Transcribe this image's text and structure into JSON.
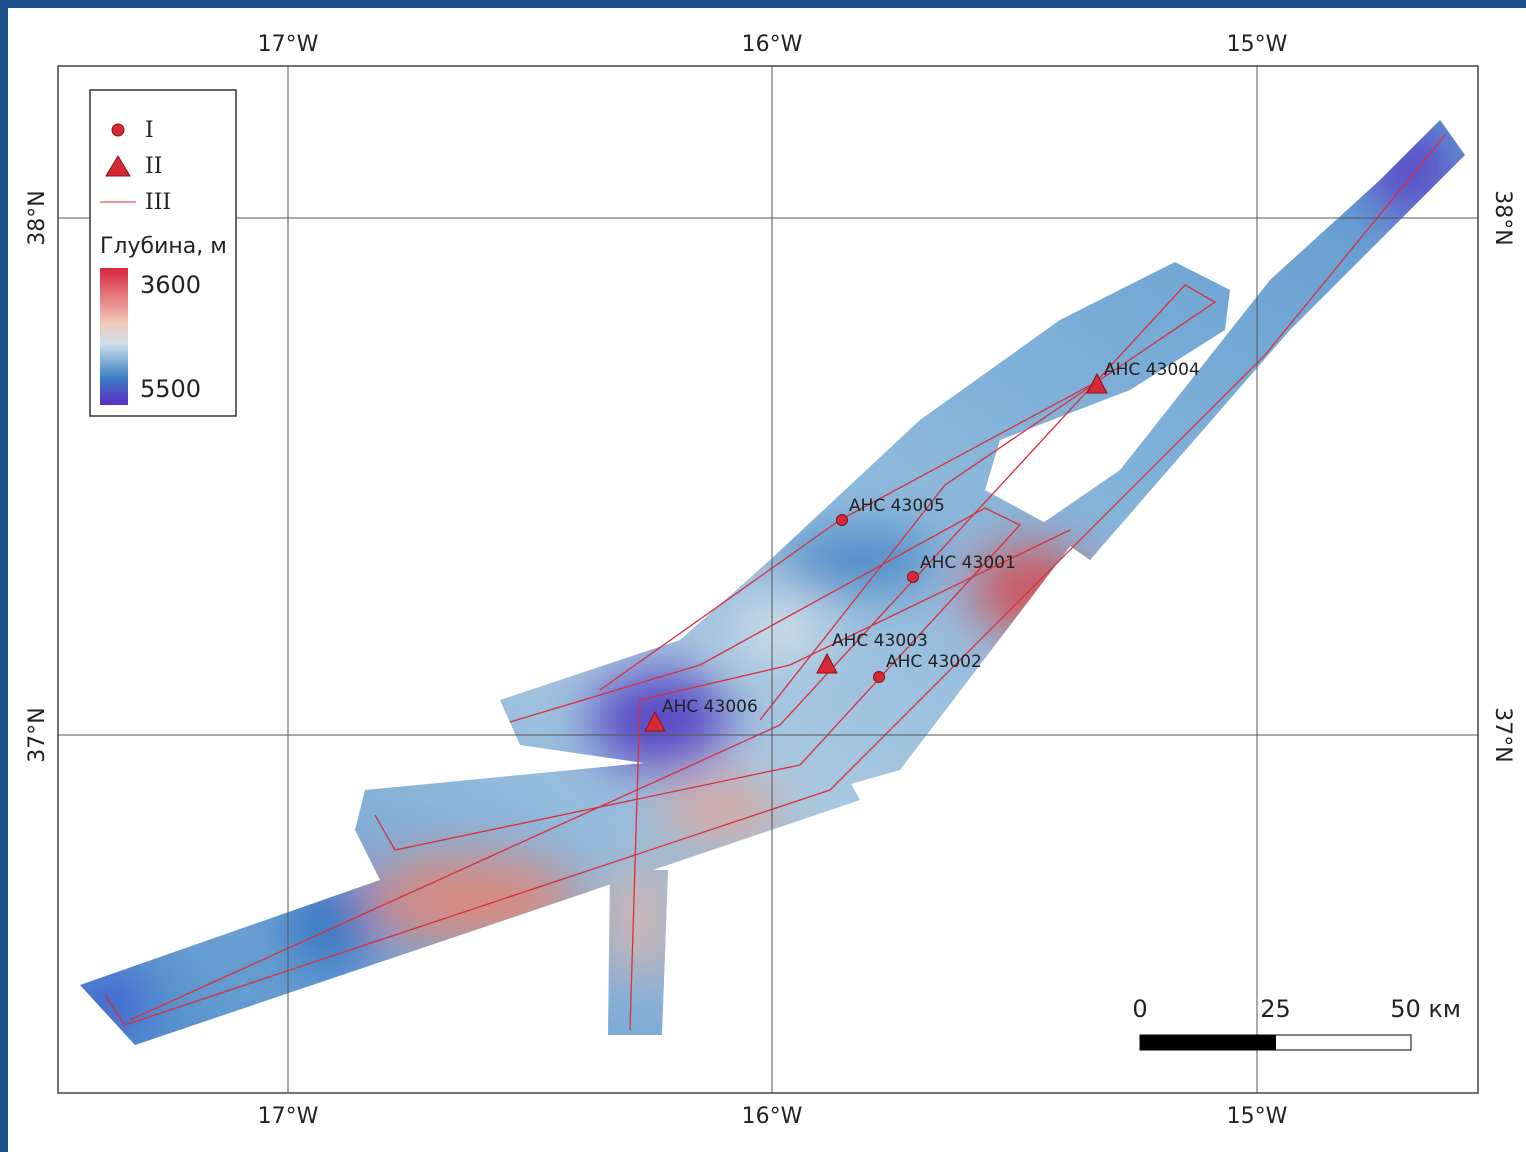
{
  "graticule": {
    "lon": [
      "17°W",
      "16°W",
      "15°W"
    ],
    "lat": [
      "38°N",
      "37°N"
    ]
  },
  "legend": {
    "items": [
      "I",
      "II",
      "III"
    ],
    "depth_title": "Глубина, м",
    "depth_top": 3600,
    "depth_bottom": 5500
  },
  "stations": [
    {
      "label": "АНС 43004",
      "kind": "II"
    },
    {
      "label": "АНС 43005",
      "kind": "I"
    },
    {
      "label": "АНС 43001",
      "kind": "I"
    },
    {
      "label": "АНС 43003",
      "kind": "II"
    },
    {
      "label": "АНС 43002",
      "kind": "I"
    },
    {
      "label": "АНС 43006",
      "kind": "II"
    }
  ],
  "scale_bar": {
    "ticks": [
      0,
      25,
      {
        "value": 50,
        "label": "50 км"
      }
    ]
  }
}
